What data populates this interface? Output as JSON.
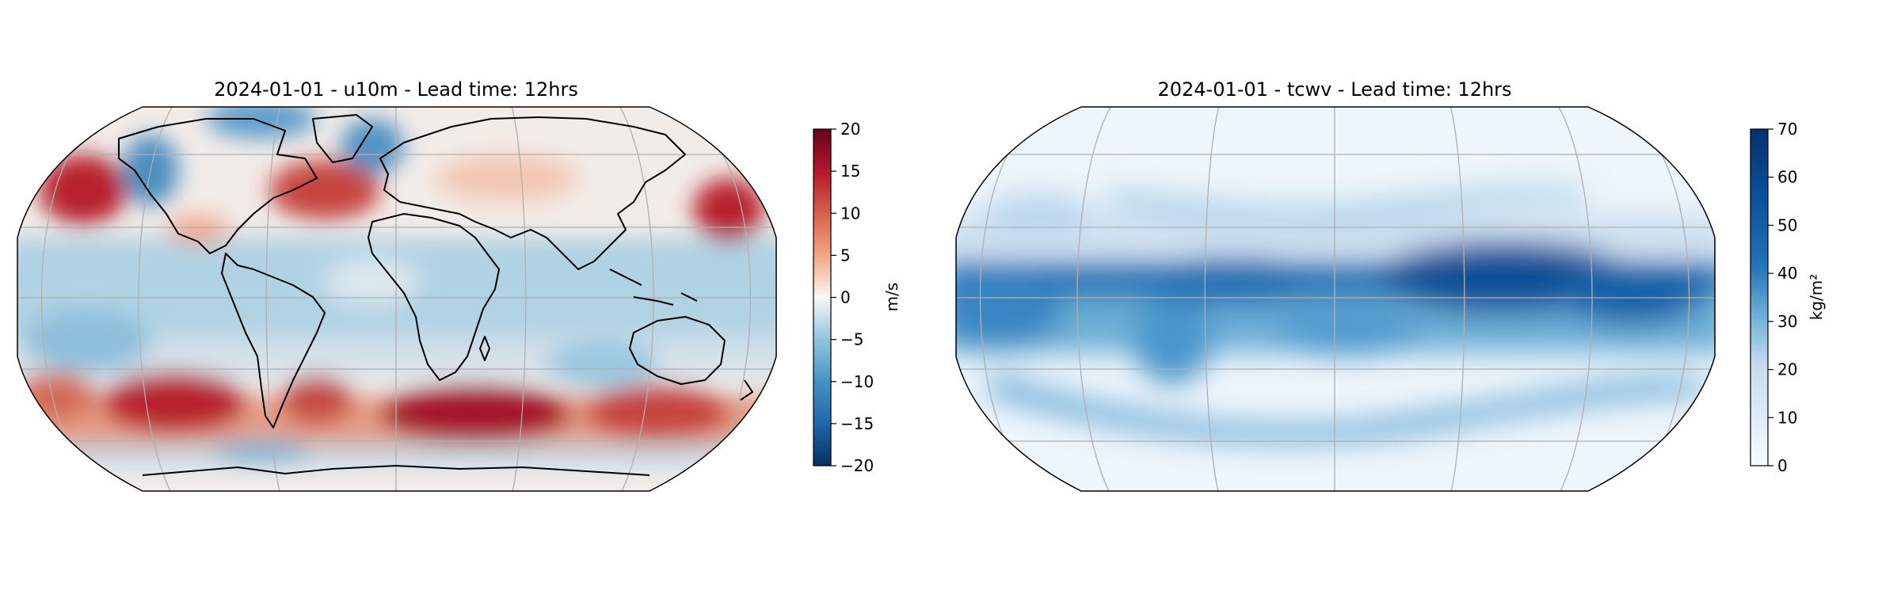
{
  "maps": [
    {
      "title": "2024-01-01 - u10m - Lead time: 12hrs",
      "variable": "u10m",
      "colormap": "RdBu_r",
      "colorbar": {
        "unit": "m/s",
        "min": -20,
        "max": 20,
        "ticks": [
          "20",
          "15",
          "10",
          "5",
          "0",
          "−5",
          "−10",
          "−15",
          "−20"
        ]
      },
      "projection": "Robinson",
      "graticule": true,
      "coastlines": true
    },
    {
      "title": "2024-01-01 - tcwv - Lead time: 12hrs",
      "variable": "tcwv",
      "colormap": "Blues",
      "colorbar": {
        "unit": "kg/m²",
        "min": 0,
        "max": 70,
        "ticks": [
          "70",
          "60",
          "50",
          "40",
          "30",
          "20",
          "10",
          "0"
        ]
      },
      "projection": "Robinson",
      "graticule": true,
      "coastlines": true
    }
  ],
  "colors": {
    "rdbu_dark_red": "#67001f",
    "rdbu_white": "#f7f7f7",
    "rdbu_dark_blue": "#053061",
    "blues_light": "#f7fbff",
    "blues_dark": "#08306b",
    "coast": "#000000",
    "grid": "#b0b0b0"
  }
}
